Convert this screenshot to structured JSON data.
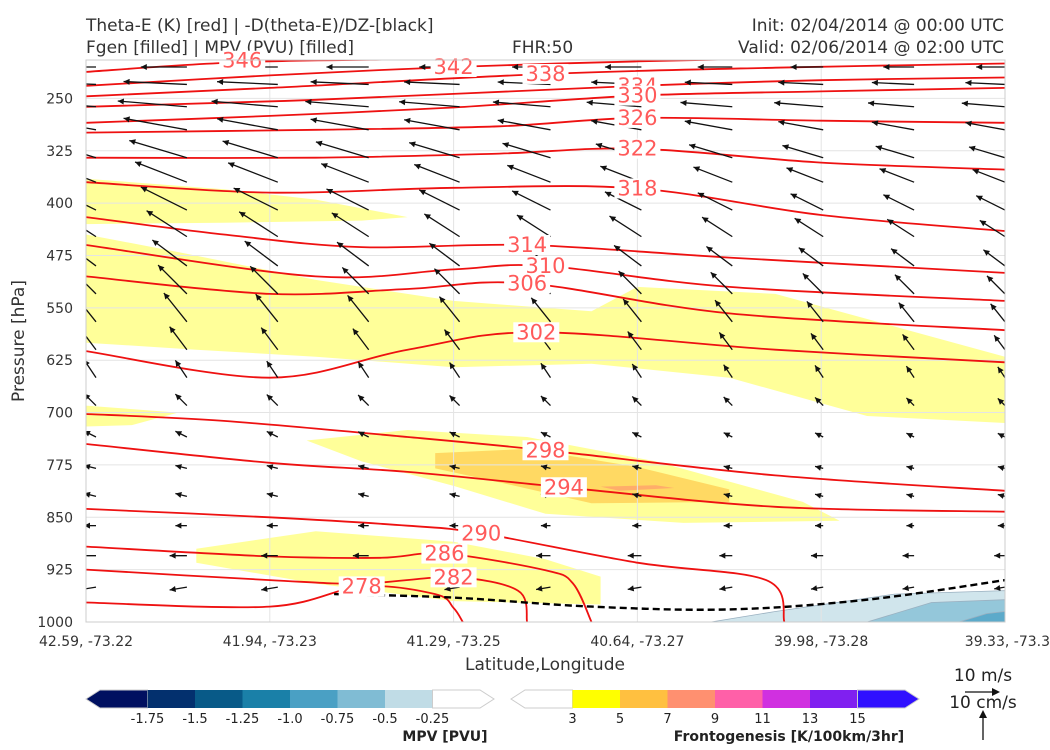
{
  "header": {
    "title_line1": "Theta-E (K) [red] | -D(theta-E)/DZ-[black]",
    "title_line2": "Fgen [filled] | MPV (PVU) [filled]",
    "fhr": "FHR:50",
    "init": "Init: 02/04/2014 @ 00:00 UTC",
    "valid": "Valid: 02/06/2014 @ 02:00 UTC"
  },
  "colors": {
    "theta_e": "#ee1111",
    "theta_e_label": "#ff5a5a",
    "vector": "#111111",
    "fgen": [
      "#ffff00",
      "#ffc040",
      "#ff9070",
      "#ff60a8",
      "#d030e0",
      "#8020f0",
      "#3010ff"
    ],
    "mpv": [
      "#001060",
      "#03306e",
      "#085a88",
      "#1a80a8",
      "#4aa0c4",
      "#80bcd4",
      "#c0dce6"
    ]
  },
  "chart_data": {
    "type": "cross-section",
    "xlabel": "Latitude,Longitude",
    "ylabel": "Pressure [hPa]",
    "x_ticks": [
      "42.59, -73.22",
      "41.94, -73.23",
      "41.29, -73.25",
      "40.64, -73.27",
      "39.98, -73.28",
      "39.33, -73.3"
    ],
    "y_ticks": [
      250,
      325,
      400,
      475,
      550,
      625,
      700,
      775,
      850,
      925,
      1000
    ],
    "ylim": [
      1000,
      195
    ],
    "xlim": [
      0,
      100
    ],
    "theta_e_contours": [
      {
        "value": 346,
        "label_at": [
          17,
          196
        ],
        "points": [
          [
            0,
            212
          ],
          [
            17,
            198
          ],
          [
            40,
            193
          ],
          [
            70,
            186
          ],
          [
            100,
            180
          ]
        ]
      },
      {
        "value": 342,
        "label_at": [
          40,
          205
        ],
        "points": [
          [
            0,
            232
          ],
          [
            20,
            217
          ],
          [
            40,
            205
          ],
          [
            60,
            197
          ],
          [
            80,
            192
          ],
          [
            100,
            190
          ]
        ]
      },
      {
        "value": 338,
        "label_at": [
          50,
          215
        ],
        "points": [
          [
            0,
            247
          ],
          [
            20,
            235
          ],
          [
            50,
            215
          ],
          [
            75,
            206
          ],
          [
            100,
            200
          ]
        ]
      },
      {
        "value": 334,
        "label_at": [
          60,
          232
        ],
        "points": [
          [
            0,
            262
          ],
          [
            25,
            252
          ],
          [
            60,
            232
          ],
          [
            80,
            224
          ],
          [
            100,
            220
          ]
        ]
      },
      {
        "value": 330,
        "label_at": [
          60,
          246
        ],
        "points": [
          [
            0,
            285
          ],
          [
            20,
            275
          ],
          [
            40,
            263
          ],
          [
            60,
            246
          ],
          [
            80,
            240
          ],
          [
            100,
            235
          ]
        ]
      },
      {
        "value": 326,
        "label_at": [
          60,
          278
        ],
        "points": [
          [
            0,
            299
          ],
          [
            25,
            295
          ],
          [
            45,
            290
          ],
          [
            60,
            278
          ],
          [
            80,
            282
          ],
          [
            100,
            285
          ]
        ]
      },
      {
        "value": 322,
        "label_at": [
          60,
          322
        ],
        "points": [
          [
            0,
            335
          ],
          [
            25,
            335
          ],
          [
            45,
            329
          ],
          [
            60,
            322
          ],
          [
            80,
            342
          ],
          [
            100,
            352
          ]
        ]
      },
      {
        "value": 318,
        "label_at": [
          60,
          379
        ],
        "points": [
          [
            0,
            370
          ],
          [
            20,
            385
          ],
          [
            40,
            378
          ],
          [
            60,
            379
          ],
          [
            80,
            417
          ],
          [
            100,
            440
          ]
        ]
      },
      {
        "value": 314,
        "label_at": [
          48,
          460
        ],
        "points": [
          [
            0,
            420
          ],
          [
            15,
            445
          ],
          [
            30,
            463
          ],
          [
            48,
            460
          ],
          [
            70,
            478
          ],
          [
            100,
            500
          ]
        ]
      },
      {
        "value": 310,
        "label_at": [
          50,
          490
        ],
        "points": [
          [
            0,
            460
          ],
          [
            25,
            505
          ],
          [
            40,
            495
          ],
          [
            50,
            490
          ],
          [
            70,
            520
          ],
          [
            100,
            540
          ]
        ]
      },
      {
        "value": 306,
        "label_at": [
          48,
          515
        ],
        "points": [
          [
            0,
            505
          ],
          [
            20,
            530
          ],
          [
            35,
            523
          ],
          [
            48,
            515
          ],
          [
            70,
            558
          ],
          [
            100,
            582
          ]
        ]
      },
      {
        "value": 302,
        "label_at": [
          49,
          585
        ],
        "points": [
          [
            0,
            612
          ],
          [
            20,
            650
          ],
          [
            35,
            610
          ],
          [
            49,
            585
          ],
          [
            75,
            610
          ],
          [
            100,
            628
          ]
        ]
      },
      {
        "value": 298,
        "label_at": [
          50,
          754
        ],
        "points": [
          [
            0,
            702
          ],
          [
            15,
            712
          ],
          [
            35,
            735
          ],
          [
            50,
            754
          ],
          [
            75,
            790
          ],
          [
            100,
            812
          ]
        ]
      },
      {
        "value": 294,
        "label_at": [
          52,
          807
        ],
        "points": [
          [
            0,
            745
          ],
          [
            20,
            772
          ],
          [
            35,
            785
          ],
          [
            52,
            807
          ],
          [
            75,
            835
          ],
          [
            100,
            842
          ]
        ]
      },
      {
        "value": 290,
        "label_at": [
          43,
          873
        ],
        "points": [
          [
            0,
            838
          ],
          [
            20,
            850
          ],
          [
            35,
            862
          ],
          [
            43,
            873
          ],
          [
            60,
            915
          ],
          [
            74,
            940
          ],
          [
            76,
            1000
          ]
        ]
      },
      {
        "value": 286,
        "label_at": [
          39,
          902
        ],
        "points": [
          [
            0,
            892
          ],
          [
            20,
            906
          ],
          [
            32,
            908
          ],
          [
            39,
            902
          ],
          [
            50,
            926
          ],
          [
            53,
            945
          ],
          [
            55,
            1000
          ]
        ]
      },
      {
        "value": 282,
        "label_at": [
          40,
          936
        ],
        "points": [
          [
            0,
            925
          ],
          [
            20,
            940
          ],
          [
            30,
            945
          ],
          [
            40,
            936
          ],
          [
            47,
            955
          ],
          [
            48,
            1000
          ]
        ]
      },
      {
        "value": 278,
        "label_at": [
          30,
          949
        ],
        "points": [
          [
            0,
            972
          ],
          [
            20,
            978
          ],
          [
            30,
            949
          ],
          [
            38,
            960
          ],
          [
            40,
            980
          ],
          [
            41,
            1000
          ]
        ]
      }
    ],
    "fgen_regions": [
      {
        "level": 3,
        "points": [
          [
            0,
            365
          ],
          [
            15,
            380
          ],
          [
            25,
            395
          ],
          [
            35,
            420
          ],
          [
            30,
            425
          ],
          [
            15,
            428
          ],
          [
            0,
            430
          ]
        ]
      },
      {
        "level": 3,
        "points": [
          [
            0,
            445
          ],
          [
            10,
            470
          ],
          [
            25,
            510
          ],
          [
            40,
            540
          ],
          [
            55,
            555
          ],
          [
            60,
            520
          ],
          [
            75,
            530
          ],
          [
            100,
            620
          ],
          [
            100,
            715
          ],
          [
            85,
            705
          ],
          [
            70,
            650
          ],
          [
            55,
            630
          ],
          [
            40,
            635
          ],
          [
            25,
            620
          ],
          [
            12,
            610
          ],
          [
            0,
            600
          ]
        ]
      },
      {
        "level": 3,
        "points": [
          [
            0,
            690
          ],
          [
            10,
            700
          ],
          [
            5,
            718
          ],
          [
            0,
            720
          ]
        ]
      },
      {
        "level": 3,
        "points": [
          [
            24,
            740
          ],
          [
            35,
            725
          ],
          [
            48,
            735
          ],
          [
            62,
            770
          ],
          [
            78,
            828
          ],
          [
            82,
            855
          ],
          [
            65,
            858
          ],
          [
            50,
            845
          ],
          [
            40,
            805
          ],
          [
            30,
            770
          ]
        ]
      },
      {
        "level": 3,
        "points": [
          [
            12,
            895
          ],
          [
            25,
            870
          ],
          [
            40,
            885
          ],
          [
            50,
            910
          ],
          [
            56,
            935
          ],
          [
            56,
            975
          ],
          [
            40,
            970
          ],
          [
            25,
            945
          ],
          [
            12,
            915
          ]
        ]
      },
      {
        "level": 5,
        "points": [
          [
            38,
            758
          ],
          [
            48,
            752
          ],
          [
            60,
            778
          ],
          [
            70,
            810
          ],
          [
            70,
            828
          ],
          [
            55,
            830
          ],
          [
            45,
            800
          ],
          [
            38,
            780
          ]
        ]
      },
      {
        "level": 7,
        "points": [
          [
            56,
            806
          ],
          [
            62,
            804
          ],
          [
            64,
            808
          ],
          [
            58,
            812
          ]
        ]
      }
    ],
    "mpv_regions": [
      {
        "level": -0.25,
        "points": [
          [
            68,
            1000
          ],
          [
            75,
            985
          ],
          [
            88,
            960
          ],
          [
            100,
            955
          ],
          [
            100,
            1000
          ]
        ]
      },
      {
        "level": -0.5,
        "points": [
          [
            85,
            1000
          ],
          [
            92,
            972
          ],
          [
            100,
            968
          ],
          [
            100,
            1000
          ]
        ]
      },
      {
        "level": -0.75,
        "points": [
          [
            95,
            1000
          ],
          [
            98,
            988
          ],
          [
            100,
            985
          ],
          [
            100,
            1000
          ]
        ]
      }
    ],
    "zero_contour": [
      [
        27,
        960
      ],
      [
        40,
        965
      ],
      [
        55,
        978
      ],
      [
        70,
        982
      ],
      [
        85,
        968
      ],
      [
        100,
        940
      ]
    ],
    "vector_rows": [
      {
        "p": 205,
        "u": -8,
        "w": 0
      },
      {
        "p": 230,
        "u": -11,
        "w": 1
      },
      {
        "p": 262,
        "u": -12,
        "w": 2
      },
      {
        "p": 295,
        "u": -11,
        "w": 4
      },
      {
        "p": 335,
        "u": -10,
        "w": 6
      },
      {
        "p": 370,
        "u": -9,
        "w": 7
      },
      {
        "p": 410,
        "u": -8,
        "w": 8
      },
      {
        "p": 448,
        "u": -7,
        "w": 9
      },
      {
        "p": 490,
        "u": -6,
        "w": 9
      },
      {
        "p": 530,
        "u": -5,
        "w": 10
      },
      {
        "p": 570,
        "u": -4,
        "w": 10
      },
      {
        "p": 610,
        "u": -3,
        "w": 8
      },
      {
        "p": 650,
        "u": -2,
        "w": 6
      },
      {
        "p": 690,
        "u": -2,
        "w": 4
      },
      {
        "p": 735,
        "u": -2,
        "w": 2
      },
      {
        "p": 780,
        "u": -2,
        "w": 1
      },
      {
        "p": 820,
        "u": -2,
        "w": 1
      },
      {
        "p": 862,
        "u": -2,
        "w": 0
      },
      {
        "p": 905,
        "u": -3,
        "w": 0
      },
      {
        "p": 950,
        "u": -3,
        "w": -1
      }
    ],
    "vector_scale": {
      "speed_label": "10 m/s",
      "vertical_label": "10 cm/s"
    },
    "colorbar_mpv": {
      "title": "MPV [PVU]",
      "ticks": [
        "-1.75",
        "-1.5",
        "-1.25",
        "-1.0",
        "-0.75",
        "-0.5",
        "-0.25"
      ]
    },
    "colorbar_fgen": {
      "title": "Frontogenesis [K/100km/3hr]",
      "ticks": [
        "3",
        "5",
        "7",
        "9",
        "11",
        "13",
        "15"
      ]
    }
  }
}
